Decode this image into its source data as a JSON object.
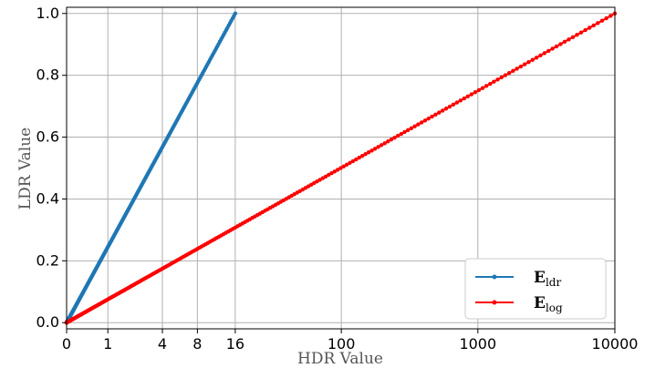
{
  "chart_data": {
    "type": "line",
    "title": "",
    "xlabel": "HDR Value",
    "ylabel": "LDR Value",
    "x_scale": "log(1+x)",
    "xlim": [
      0,
      10000
    ],
    "ylim": [
      -0.02,
      1.02
    ],
    "x_ticks": [
      0,
      1,
      4,
      8,
      16,
      100,
      1000,
      10000
    ],
    "x_tick_labels": [
      "0",
      "1",
      "4",
      "8",
      "16",
      "100",
      "1000",
      "10000"
    ],
    "y_ticks": [
      0.0,
      0.2,
      0.4,
      0.6,
      0.8,
      1.0
    ],
    "y_tick_labels": [
      "0.0",
      "0.2",
      "0.4",
      "0.6",
      "0.8",
      "1.0"
    ],
    "grid": true,
    "legend_position": "bottom-right",
    "series": [
      {
        "name_main": "E",
        "name_sub": "ldr",
        "color": "#1f77b4",
        "marker": "circle",
        "x_max": 16,
        "mapping": "y = log(1+x) / log(1+x_max)"
      },
      {
        "name_main": "E",
        "name_sub": "log",
        "color": "#ff0000",
        "marker": "circle",
        "x_max": 10000,
        "mapping": "y = log(1+x) / log(1+x_max)"
      }
    ]
  }
}
